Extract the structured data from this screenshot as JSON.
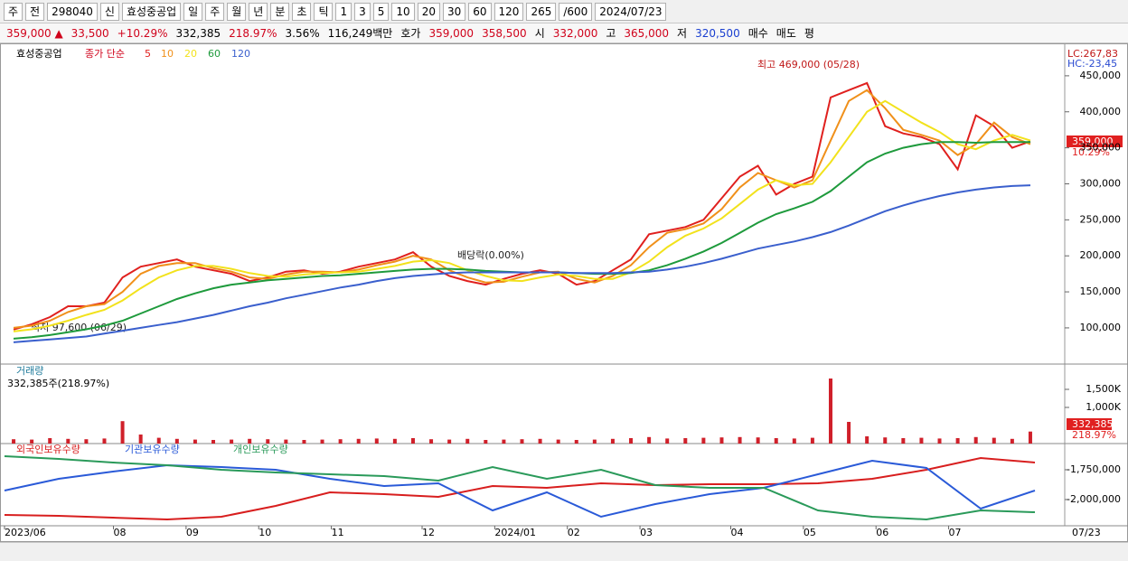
{
  "toolbar": {
    "items": [
      "주",
      "전",
      "298040",
      "신",
      "효성중공업",
      "일",
      "주",
      "월",
      "년",
      "분",
      "초",
      "틱",
      "1",
      "3",
      "5",
      "10",
      "20",
      "30",
      "60",
      "120",
      "265",
      "/600",
      "2024/07/23"
    ]
  },
  "infobar": {
    "items": [
      {
        "text": "359,000 ▲",
        "color": "#d0021b"
      },
      {
        "text": "33,500",
        "color": "#d0021b"
      },
      {
        "text": "+10.29%",
        "color": "#d0021b"
      },
      {
        "text": "332,385",
        "color": "#000000"
      },
      {
        "text": "218.97%",
        "color": "#d0021b"
      },
      {
        "text": "3.56%",
        "color": "#000000"
      },
      {
        "text": "116,249백만",
        "color": "#000000"
      },
      {
        "text": "호가",
        "color": "#000000"
      },
      {
        "text": "359,000",
        "color": "#d0021b"
      },
      {
        "text": "358,500",
        "color": "#d0021b"
      },
      {
        "text": "시",
        "color": "#000000"
      },
      {
        "text": "332,000",
        "color": "#d0021b"
      },
      {
        "text": "고",
        "color": "#000000"
      },
      {
        "text": "365,000",
        "color": "#d0021b"
      },
      {
        "text": "저",
        "color": "#000000"
      },
      {
        "text": "320,500",
        "color": "#1a3fd0"
      },
      {
        "text": "매수",
        "color": "#000000"
      },
      {
        "text": "매도",
        "color": "#000000"
      },
      {
        "text": "평",
        "color": "#000000"
      }
    ]
  },
  "chart_data": [
    {
      "type": "line",
      "title": "효성중공업",
      "subtitle": "종가 단순",
      "categories": [
        "2023/06",
        null,
        null,
        null,
        null,
        null,
        "08",
        null,
        null,
        null,
        "09",
        null,
        null,
        null,
        "10",
        null,
        null,
        null,
        "11",
        null,
        null,
        null,
        null,
        "12",
        null,
        null,
        null,
        "2024/01",
        null,
        null,
        null,
        "02",
        null,
        null,
        null,
        "03",
        null,
        null,
        null,
        null,
        "04",
        null,
        null,
        null,
        "05",
        null,
        null,
        null,
        "06",
        null,
        null,
        null,
        "07",
        null,
        null,
        null,
        null
      ],
      "series": [
        {
          "name": "5",
          "color": "#e0201e",
          "values": [
            97600,
            105000,
            115000,
            130000,
            130000,
            135000,
            170000,
            185000,
            190000,
            195000,
            185000,
            180000,
            175000,
            165000,
            170000,
            178000,
            180000,
            175000,
            178000,
            185000,
            190000,
            195000,
            205000,
            185000,
            172000,
            165000,
            160000,
            168000,
            175000,
            180000,
            175000,
            160000,
            165000,
            180000,
            195000,
            230000,
            235000,
            240000,
            250000,
            280000,
            310000,
            325000,
            285000,
            300000,
            310000,
            420000,
            430000,
            440000,
            380000,
            370000,
            365000,
            355000,
            320000,
            395000,
            380000,
            350000,
            359000
          ]
        },
        {
          "name": "10",
          "color": "#f0901a",
          "values": [
            100000,
            103000,
            110000,
            122000,
            130000,
            133000,
            150000,
            175000,
            186000,
            190000,
            190000,
            183000,
            178000,
            170000,
            168000,
            174000,
            178000,
            178000,
            177000,
            181000,
            187000,
            192000,
            200000,
            195000,
            180000,
            170000,
            163000,
            164000,
            171000,
            177000,
            178000,
            168000,
            163000,
            172000,
            187000,
            212000,
            232000,
            237000,
            245000,
            265000,
            295000,
            315000,
            305000,
            295000,
            305000,
            360000,
            415000,
            430000,
            405000,
            375000,
            368000,
            360000,
            340000,
            355000,
            385000,
            365000,
            355000
          ]
        },
        {
          "name": "20",
          "color": "#f2e21c",
          "values": [
            95000,
            98000,
            103000,
            110000,
            118000,
            125000,
            138000,
            155000,
            170000,
            180000,
            186000,
            186000,
            182000,
            176000,
            172000,
            171000,
            174000,
            176000,
            177000,
            178000,
            182000,
            186000,
            192000,
            194000,
            190000,
            180000,
            172000,
            166000,
            165000,
            170000,
            174000,
            172000,
            168000,
            168000,
            177000,
            192000,
            212000,
            228000,
            238000,
            252000,
            272000,
            292000,
            305000,
            298000,
            300000,
            330000,
            365000,
            400000,
            415000,
            400000,
            385000,
            372000,
            355000,
            348000,
            360000,
            368000,
            360000
          ]
        },
        {
          "name": "60",
          "color": "#1e9a3c",
          "values": [
            85000,
            87000,
            90000,
            94000,
            98000,
            103000,
            110000,
            120000,
            130000,
            140000,
            148000,
            155000,
            160000,
            163000,
            166000,
            168000,
            170000,
            172000,
            173000,
            175000,
            177000,
            179000,
            181000,
            182000,
            182000,
            181000,
            179000,
            178000,
            177000,
            177000,
            177000,
            176000,
            175000,
            175000,
            176000,
            180000,
            187000,
            196000,
            206000,
            218000,
            232000,
            246000,
            258000,
            266000,
            275000,
            290000,
            310000,
            330000,
            342000,
            350000,
            355000,
            358000,
            358000,
            357000,
            358000,
            358000,
            358000
          ]
        },
        {
          "name": "120",
          "color": "#3a5fcd",
          "values": [
            80000,
            82000,
            84000,
            86000,
            88000,
            92000,
            96000,
            100000,
            104000,
            108000,
            113000,
            118000,
            124000,
            130000,
            135000,
            141000,
            146000,
            151000,
            156000,
            160000,
            165000,
            169000,
            172000,
            174000,
            176000,
            177000,
            177000,
            177000,
            177000,
            177000,
            177000,
            176000,
            176000,
            176000,
            177000,
            178000,
            181000,
            185000,
            190000,
            196000,
            203000,
            210000,
            215000,
            220000,
            226000,
            233000,
            242000,
            252000,
            262000,
            270000,
            277000,
            283000,
            288000,
            292000,
            295000,
            297000,
            298000
          ]
        }
      ],
      "ylim": [
        51000,
        490000
      ],
      "yticks": [
        {
          "value": 100000,
          "label": "100,000"
        },
        {
          "value": 150000,
          "label": "150,000"
        },
        {
          "value": 200000,
          "label": "200,000"
        },
        {
          "value": 250000,
          "label": "250,000"
        },
        {
          "value": 300000,
          "label": "300,000"
        },
        {
          "value": 350000,
          "label": "350,000"
        },
        {
          "value": 400000,
          "label": "400,000"
        },
        {
          "value": 450000,
          "label": "450,000"
        }
      ],
      "annotations": [
        "최고 469,000 (05/28)",
        "최저 97,600 (06/29)",
        "배당락(0.00%)",
        "LC:267,83",
        "HC:-23,45",
        "359,000",
        "10.29%"
      ]
    },
    {
      "type": "bar",
      "title": "거래량",
      "subtitle": "332,385주(218.97%)",
      "color": "#d0202a",
      "values": [
        120000,
        110000,
        150000,
        130000,
        120000,
        140000,
        620000,
        250000,
        160000,
        130000,
        110000,
        100000,
        110000,
        130000,
        120000,
        110000,
        100000,
        110000,
        120000,
        130000,
        140000,
        130000,
        150000,
        120000,
        110000,
        130000,
        100000,
        110000,
        120000,
        130000,
        110000,
        100000,
        110000,
        130000,
        150000,
        180000,
        140000,
        150000,
        160000,
        170000,
        180000,
        170000,
        150000,
        140000,
        160000,
        1800000,
        600000,
        200000,
        170000,
        150000,
        160000,
        140000,
        150000,
        180000,
        160000,
        130000,
        332385
      ],
      "ylim": [
        0,
        2150000
      ],
      "yticks": [
        {
          "value": 1000000,
          "label": "1,000K"
        },
        {
          "value": 1500000,
          "label": "1,500K"
        }
      ],
      "annotations": [
        "332,385",
        "218.97%"
      ]
    },
    {
      "type": "line",
      "series": [
        {
          "name": "외국인보유수량",
          "color": "#d81e1e",
          "values": [
            -2128800,
            -2136400,
            -2151500,
            -2166700,
            -2143900,
            -2053000,
            -1939400,
            -1954500,
            -1977300,
            -1886400,
            -1901500,
            -1863600,
            -1878800,
            -1871200,
            -1871200,
            -1863600,
            -1825800,
            -1750000,
            -1651500,
            -1689400
          ]
        },
        {
          "name": "기관보유수량",
          "color": "#2a5ad8",
          "values": [
            -1924200,
            -1825800,
            -1765200,
            -1712100,
            -1727300,
            -1750000,
            -1825800,
            -1886400,
            -1863600,
            -2090900,
            -1939400,
            -2143900,
            -2037900,
            -1954500,
            -1901500,
            -1787900,
            -1674200,
            -1734800,
            -2075800,
            -1924200
          ]
        },
        {
          "name": "개인보유수량",
          "color": "#2a9a5a",
          "values": [
            -1636400,
            -1659100,
            -1689400,
            -1712100,
            -1750000,
            -1772700,
            -1787900,
            -1803000,
            -1840900,
            -1727300,
            -1825800,
            -1750000,
            -1878800,
            -1901500,
            -1901500,
            -2090900,
            -2143900,
            -2166700,
            -2090900,
            -2106100
          ]
        }
      ],
      "ylim": [
        -2220000,
        -1538000
      ],
      "yticks": [
        {
          "value": -2000000,
          "label": "-2,000,000"
        },
        {
          "value": -1750000,
          "label": "-1,750,000"
        }
      ],
      "annotations": [
        "07/23"
      ]
    }
  ]
}
